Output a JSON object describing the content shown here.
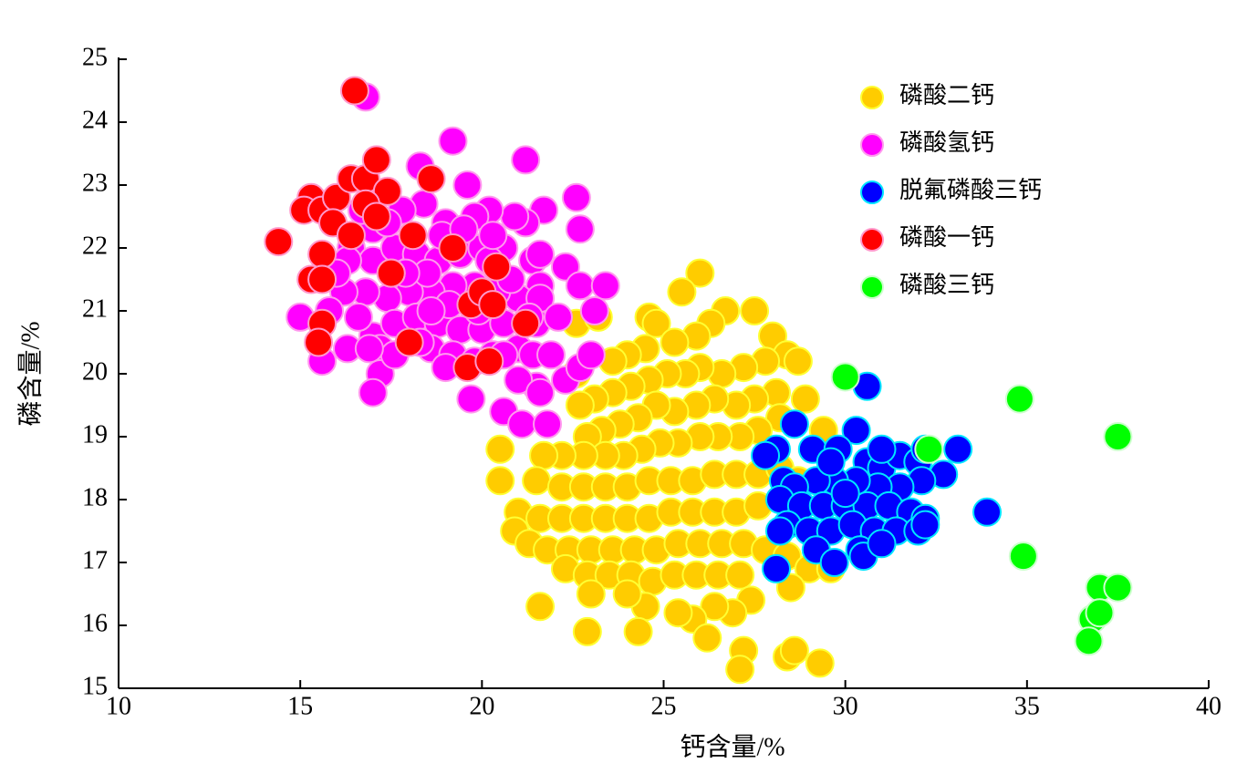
{
  "chart_data": {
    "type": "scatter",
    "xlabel": "钙含量/%",
    "ylabel": "磷含量/%",
    "xlim": [
      10,
      40
    ],
    "ylim": [
      15,
      25
    ],
    "xticks": [
      10,
      15,
      20,
      25,
      30,
      35,
      40
    ],
    "yticks": [
      15,
      16,
      17,
      18,
      19,
      20,
      21,
      22,
      23,
      24,
      25
    ],
    "legend": "upper right",
    "grid": false,
    "series": [
      {
        "name": "磷酸二钙",
        "color": "#ffcc00",
        "edgecolor": "#ffff33",
        "x": [
          26.0,
          25.5,
          24.6,
          24.8,
          22.6,
          23.2,
          27.5,
          26.7,
          26.3,
          25.9,
          25.3,
          24.5,
          24.0,
          23.6,
          28.0,
          28.4,
          28.7,
          27.8,
          27.2,
          26.6,
          26.0,
          25.6,
          25.1,
          24.6,
          24.1,
          23.6,
          23.1,
          22.7,
          22.6,
          28.1,
          27.5,
          27.0,
          26.4,
          25.9,
          25.3,
          24.8,
          24.3,
          23.8,
          23.3,
          22.9,
          28.2,
          28.9,
          29.4,
          27.6,
          27.1,
          26.5,
          26.0,
          25.4,
          24.9,
          24.4,
          23.9,
          23.4,
          22.8,
          22.2,
          21.7,
          20.5,
          20.5,
          21.5,
          22.2,
          22.8,
          23.4,
          24.0,
          24.6,
          25.2,
          25.8,
          26.4,
          27.0,
          27.6,
          28.2,
          28.7,
          21.0,
          21.6,
          22.2,
          22.8,
          23.4,
          24.0,
          24.6,
          25.2,
          25.8,
          26.4,
          27.0,
          27.6,
          20.9,
          21.3,
          21.8,
          22.4,
          23.0,
          23.6,
          24.2,
          24.8,
          25.4,
          26.0,
          26.6,
          27.2,
          27.8,
          28.4,
          29.0,
          29.6,
          22.3,
          22.9,
          23.5,
          24.1,
          24.7,
          25.3,
          25.9,
          26.5,
          27.1,
          28.5,
          27.4,
          26.9,
          26.4,
          25.8,
          25.4,
          24.5,
          24.0,
          23.0,
          21.6,
          22.9,
          24.3,
          26.2,
          27.2,
          27.1,
          28.4,
          28.6,
          29.3
        ],
        "y": [
          21.6,
          21.3,
          20.9,
          20.8,
          20.8,
          20.9,
          21.0,
          21.0,
          20.8,
          20.6,
          20.5,
          20.4,
          20.3,
          20.2,
          20.6,
          20.3,
          20.2,
          20.2,
          20.1,
          20.0,
          20.1,
          20.0,
          20.0,
          19.9,
          19.8,
          19.7,
          19.6,
          19.5,
          20.0,
          19.7,
          19.6,
          19.5,
          19.6,
          19.5,
          19.4,
          19.5,
          19.3,
          19.2,
          19.1,
          19.0,
          19.3,
          19.6,
          19.1,
          19.1,
          19.0,
          19.0,
          19.0,
          18.9,
          18.9,
          18.8,
          18.7,
          18.7,
          18.7,
          18.7,
          18.7,
          18.8,
          18.3,
          18.3,
          18.2,
          18.2,
          18.2,
          18.2,
          18.3,
          18.3,
          18.3,
          18.4,
          18.4,
          18.4,
          18.5,
          18.3,
          17.8,
          17.7,
          17.7,
          17.7,
          17.7,
          17.7,
          17.7,
          17.8,
          17.8,
          17.8,
          17.8,
          17.9,
          17.5,
          17.3,
          17.2,
          17.2,
          17.2,
          17.2,
          17.2,
          17.2,
          17.3,
          17.3,
          17.3,
          17.3,
          17.2,
          17.1,
          16.9,
          16.9,
          16.9,
          16.8,
          16.8,
          16.8,
          16.7,
          16.8,
          16.8,
          16.8,
          16.8,
          16.6,
          16.4,
          16.2,
          16.3,
          16.1,
          16.2,
          16.3,
          16.5,
          16.5,
          16.3,
          15.9,
          15.9,
          15.8,
          15.6,
          15.3,
          15.5,
          15.6,
          15.4
        ]
      },
      {
        "name": "磷酸氢钙",
        "color": "#ff00ff",
        "edgecolor": "#ff99ee",
        "x": [
          16.8,
          19.2,
          21.2,
          18.3,
          19.6,
          22.6,
          22.7,
          21.7,
          21.2,
          20.9,
          20.2,
          19.8,
          19.0,
          18.4,
          17.8,
          17.0,
          16.4,
          17.0,
          17.6,
          18.2,
          18.8,
          19.4,
          20.0,
          20.6,
          21.4,
          22.3,
          21.6,
          22.7,
          23.4,
          23.1,
          21.0,
          20.4,
          19.8,
          19.2,
          18.6,
          18.0,
          17.4,
          16.8,
          16.2,
          15.8,
          15.0,
          15.6,
          16.3,
          17.0,
          17.6,
          18.2,
          18.8,
          19.4,
          20.0,
          20.6,
          21.5,
          17.2,
          17.2,
          17.0,
          18.6,
          19.2,
          19.8,
          20.3,
          21.0,
          21.4,
          21.5,
          21.0,
          19.7,
          20.6,
          21.1,
          21.8,
          22.3,
          22.7,
          23.0,
          21.6,
          16.3,
          16.0,
          16.6,
          18.5,
          17.9,
          19.1,
          20.2,
          20.8,
          21.6,
          18.3,
          17.6,
          16.9,
          17.5,
          18.9,
          19.5,
          20.3,
          21.6,
          22.1,
          21.9,
          19.9,
          20.6,
          19.0,
          18.6,
          17.4,
          16.7,
          21.3
        ],
        "y": [
          24.4,
          23.7,
          23.4,
          23.3,
          23.0,
          22.8,
          22.3,
          22.6,
          22.4,
          22.5,
          22.6,
          22.5,
          22.4,
          22.7,
          22.6,
          22.3,
          22.0,
          21.8,
          22.0,
          21.9,
          21.8,
          21.9,
          22.0,
          22.0,
          21.8,
          21.7,
          21.4,
          21.4,
          21.4,
          21.0,
          21.2,
          21.3,
          21.4,
          21.4,
          21.3,
          21.3,
          21.2,
          21.3,
          21.3,
          21.0,
          20.9,
          20.2,
          20.4,
          20.6,
          20.8,
          20.9,
          20.8,
          20.7,
          20.7,
          20.8,
          20.8,
          20.4,
          20.0,
          19.7,
          20.4,
          20.3,
          20.2,
          20.3,
          20.4,
          20.3,
          19.8,
          19.9,
          19.6,
          19.4,
          19.2,
          19.2,
          19.9,
          20.1,
          20.3,
          19.7,
          21.8,
          21.6,
          20.9,
          21.6,
          21.6,
          21.1,
          21.8,
          21.5,
          21.2,
          20.5,
          20.3,
          20.4,
          21.6,
          22.2,
          22.3,
          22.2,
          21.9,
          20.9,
          20.3,
          21.0,
          20.3,
          20.1,
          21.0,
          22.4,
          22.6,
          20.9
        ]
      },
      {
        "name": "脱氟磷酸三钙",
        "color": "#0000ff",
        "edgecolor": "#00e5ff",
        "x": [
          30.6,
          28.6,
          30.3,
          28.1,
          28.3,
          27.8,
          29.1,
          29.8,
          30.6,
          31.0,
          31.5,
          32.0,
          32.2,
          33.1,
          32.7,
          32.1,
          31.5,
          30.9,
          30.3,
          29.7,
          29.2,
          28.6,
          28.2,
          28.8,
          29.4,
          30.0,
          30.6,
          31.2,
          31.8,
          32.2,
          33.9,
          28.4,
          28.2,
          29.0,
          29.6,
          30.2,
          30.8,
          31.4,
          32.0,
          29.2,
          30.4,
          30.5,
          29.7,
          28.1,
          31.0,
          29.6,
          30.0,
          31.0,
          32.2
        ],
        "y": [
          19.8,
          19.2,
          19.1,
          18.8,
          18.3,
          18.7,
          18.8,
          18.8,
          18.6,
          18.5,
          18.7,
          18.6,
          18.8,
          18.8,
          18.4,
          18.3,
          18.2,
          18.2,
          18.3,
          18.3,
          18.3,
          18.2,
          18.0,
          17.9,
          17.9,
          17.9,
          17.9,
          17.9,
          17.8,
          17.7,
          17.8,
          17.6,
          17.5,
          17.5,
          17.5,
          17.6,
          17.5,
          17.5,
          17.5,
          17.2,
          17.2,
          17.1,
          17.0,
          16.9,
          18.8,
          18.6,
          18.1,
          17.3,
          17.6
        ]
      },
      {
        "name": "磷酸一钙",
        "color": "#ff0000",
        "edgecolor": "#ff99cc",
        "x": [
          16.5,
          14.4,
          15.3,
          15.1,
          15.6,
          16.0,
          16.4,
          16.8,
          17.1,
          17.4,
          16.8,
          17.1,
          15.9,
          16.4,
          15.6,
          15.3,
          15.6,
          17.5,
          15.6,
          15.5,
          18.1,
          18.6,
          19.2,
          18.0,
          19.6,
          20.2,
          19.7,
          20.0,
          20.3,
          20.4,
          21.2
        ],
        "y": [
          24.5,
          22.1,
          22.8,
          22.6,
          22.6,
          22.8,
          23.1,
          23.1,
          23.4,
          22.9,
          22.7,
          22.5,
          22.4,
          22.2,
          21.9,
          21.5,
          21.5,
          21.6,
          20.8,
          20.5,
          22.2,
          23.1,
          22.0,
          20.5,
          20.1,
          20.2,
          21.1,
          21.3,
          21.1,
          21.7,
          20.8
        ]
      },
      {
        "name": "磷酸三钙",
        "color": "#00ff00",
        "edgecolor": "#ccffcc",
        "x": [
          30.0,
          32.3,
          34.8,
          34.9,
          37.5,
          37.0,
          37.5,
          36.8,
          37.0,
          36.7
        ],
        "y": [
          19.95,
          18.8,
          19.6,
          17.1,
          19.0,
          16.6,
          16.6,
          16.1,
          16.2,
          15.75
        ]
      }
    ]
  }
}
